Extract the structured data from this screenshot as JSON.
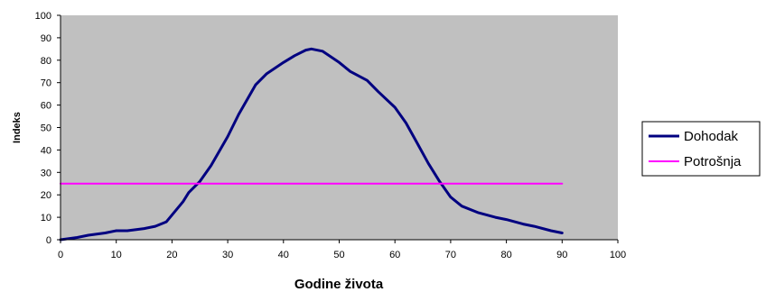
{
  "chart_data": {
    "type": "line",
    "xlabel": "Godine života",
    "ylabel": "Indeks",
    "xlim": [
      0,
      100
    ],
    "ylim": [
      0,
      100
    ],
    "x_ticks": [
      0,
      10,
      20,
      30,
      40,
      50,
      60,
      70,
      80,
      90,
      100
    ],
    "y_ticks": [
      0,
      10,
      20,
      30,
      40,
      50,
      60,
      70,
      80,
      90,
      100
    ],
    "grid": false,
    "plot_background": "#c0c0c0",
    "legend_placement": "right",
    "series": [
      {
        "name": "Dohodak",
        "color": "#000080",
        "x": [
          0,
          3,
          5,
          8,
          10,
          12,
          15,
          17,
          19,
          20,
          22,
          23,
          25,
          27,
          30,
          32,
          35,
          37,
          40,
          42,
          44,
          45,
          47,
          50,
          52,
          55,
          57,
          60,
          62,
          64,
          66,
          68,
          70,
          72,
          75,
          78,
          80,
          83,
          85,
          88,
          90
        ],
        "y": [
          0,
          1,
          2,
          3,
          4,
          4,
          5,
          6,
          8,
          11,
          17,
          21,
          26,
          33,
          46,
          56,
          69,
          74,
          79,
          82,
          84.5,
          85,
          84,
          79,
          75,
          71,
          66,
          59,
          52,
          43,
          34,
          26,
          19,
          15,
          12,
          10,
          9,
          7,
          6,
          4,
          3
        ]
      },
      {
        "name": "Potrošnja",
        "color": "#ff00ff",
        "x": [
          0,
          90
        ],
        "y": [
          25,
          25
        ]
      }
    ]
  }
}
